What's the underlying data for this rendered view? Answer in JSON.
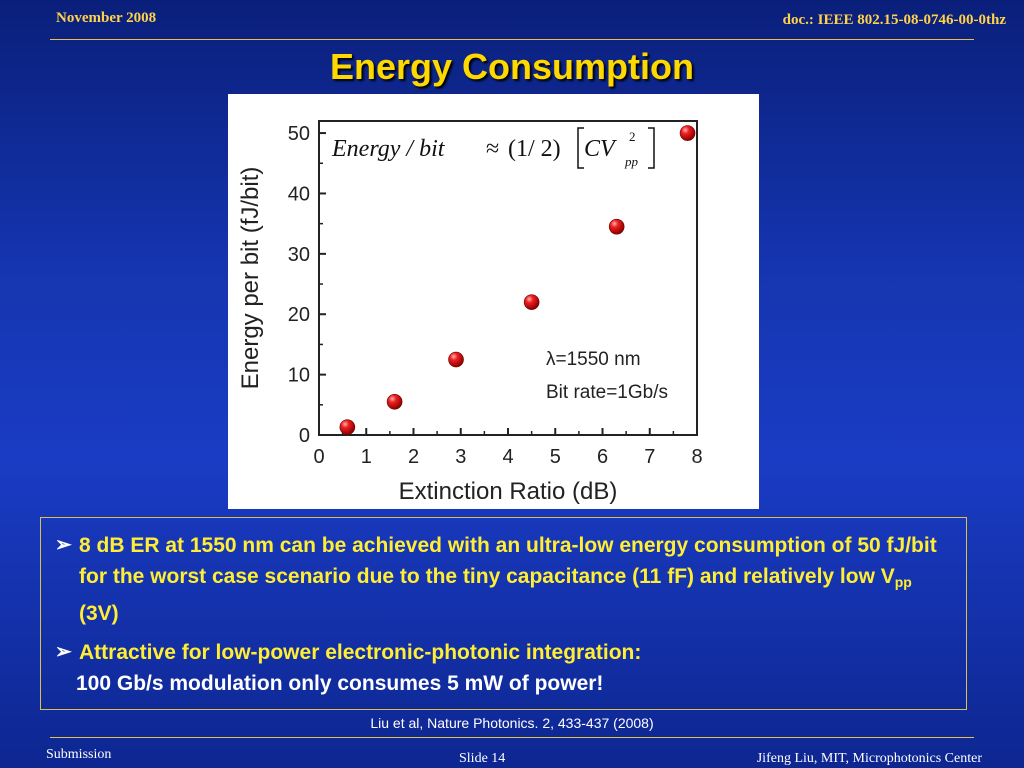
{
  "header": {
    "date": "November 2008",
    "doc": "doc.: IEEE 802.15-08-0746-00-0thz"
  },
  "title": "Energy Consumption",
  "colors": {
    "title": "#ffd800",
    "bullet_text": "#ffee33",
    "header_text": "#ffd24a",
    "point": "#e01010",
    "background": "#1535b0"
  },
  "chart_data": {
    "type": "scatter",
    "xlabel": "Extinction Ratio (dB)",
    "ylabel": "Energy per bit (fJ/bit)",
    "xlim": [
      0,
      8
    ],
    "ylim": [
      0,
      52
    ],
    "xticks": [
      "0",
      "1",
      "2",
      "3",
      "4",
      "5",
      "6",
      "7",
      "8"
    ],
    "yticks": [
      "0",
      "10",
      "20",
      "30",
      "40",
      "50"
    ],
    "points": [
      {
        "x": 0.6,
        "y": 1.3
      },
      {
        "x": 1.6,
        "y": 5.5
      },
      {
        "x": 2.9,
        "y": 12.5
      },
      {
        "x": 4.5,
        "y": 22
      },
      {
        "x": 6.3,
        "y": 34.5
      },
      {
        "x": 7.8,
        "y": 50
      }
    ],
    "formula": {
      "lhs": "Energy / bit",
      "approx": "≈",
      "frac": "(1/ 2)",
      "cv": "CV",
      "sup": "2",
      "sub": "pp"
    },
    "annotation": {
      "line1": "λ=1550 nm",
      "line2": "Bit rate=1Gb/s"
    },
    "grid": false
  },
  "bullets": {
    "b1": {
      "text": "8 dB ER at 1550 nm can be achieved with an ultra-low energy consumption of 50 fJ/bit for the worst case scenario due to the tiny capacitance (11 fF) and relatively low V",
      "sub": "pp",
      "tail": " (3V)"
    },
    "b2": {
      "main": "Attractive for low-power electronic-photonic integration:",
      "sub": "100 Gb/s modulation only consumes 5 mW of power!"
    }
  },
  "citation": "Liu et al, Nature Photonics. 2, 433-437  (2008)",
  "footer": {
    "left": "Submission",
    "slide": "Slide 14",
    "right": "Jifeng Liu, MIT, Microphotonics Center"
  }
}
